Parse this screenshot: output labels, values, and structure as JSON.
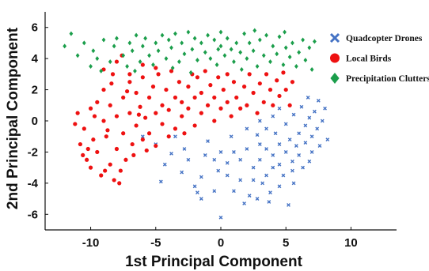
{
  "chart_data": {
    "type": "scatter",
    "title": "",
    "xlabel": "1st Principal Component",
    "ylabel": "2nd Principal Component",
    "xlim": [
      -13.5,
      13.5
    ],
    "ylim": [
      -7,
      7
    ],
    "xticks": [
      -10,
      -5,
      0,
      5,
      10
    ],
    "xtick_labels": [
      "-10",
      "-5",
      "0",
      "5",
      "10"
    ],
    "yticks": [
      -6,
      -4,
      -2,
      0,
      2,
      4,
      6
    ],
    "ytick_labels": [
      "-6",
      "-4",
      "-2",
      "0",
      "2",
      "4",
      "6"
    ],
    "grid": false,
    "legend_position": "top-right",
    "series": [
      {
        "name": "Quadcopter Drones",
        "marker": "x",
        "color": "#4472c4",
        "points": [
          [
            -6.0,
            -1.0
          ],
          [
            -5.0,
            -1.5
          ],
          [
            -4.3,
            -2.8
          ],
          [
            -3.5,
            -1.0
          ],
          [
            -3.0,
            -3.3
          ],
          [
            -2.5,
            -2.5
          ],
          [
            -2.0,
            -4.2
          ],
          [
            -1.5,
            -3.6
          ],
          [
            -1.0,
            -1.3
          ],
          [
            -1.8,
            -4.6
          ],
          [
            -1.5,
            -5.0
          ],
          [
            -0.5,
            -2.5
          ],
          [
            -0.5,
            -4.5
          ],
          [
            0.0,
            -2.0
          ],
          [
            0.0,
            -6.2
          ],
          [
            0.5,
            -3.5
          ],
          [
            0.8,
            -1.0
          ],
          [
            1.0,
            -4.5
          ],
          [
            1.5,
            -2.5
          ],
          [
            1.5,
            -3.8
          ],
          [
            2.0,
            -0.5
          ],
          [
            2.0,
            -1.8
          ],
          [
            2.2,
            -4.8
          ],
          [
            2.5,
            -3.0
          ],
          [
            2.8,
            -5.0
          ],
          [
            3.0,
            -1.5
          ],
          [
            3.0,
            -2.5
          ],
          [
            3.2,
            -4.0
          ],
          [
            3.5,
            -0.5
          ],
          [
            3.5,
            -1.8
          ],
          [
            3.5,
            -3.5
          ],
          [
            3.8,
            -4.6
          ],
          [
            4.0,
            -2.2
          ],
          [
            4.0,
            -3.0
          ],
          [
            4.2,
            -0.8
          ],
          [
            4.5,
            -1.5
          ],
          [
            4.5,
            -2.8
          ],
          [
            4.5,
            -4.2
          ],
          [
            4.8,
            -3.5
          ],
          [
            5.0,
            -0.2
          ],
          [
            5.0,
            -2.0
          ],
          [
            5.2,
            -5.4
          ],
          [
            5.3,
            -1.2
          ],
          [
            5.5,
            -2.6
          ],
          [
            5.5,
            -3.2
          ],
          [
            5.6,
            0.4
          ],
          [
            5.8,
            -1.6
          ],
          [
            6.0,
            -0.8
          ],
          [
            6.0,
            -2.2
          ],
          [
            6.2,
            0.9
          ],
          [
            6.3,
            -3.0
          ],
          [
            6.5,
            -0.3
          ],
          [
            6.5,
            -1.4
          ],
          [
            6.7,
            1.5
          ],
          [
            6.8,
            0.2
          ],
          [
            7.0,
            -1.0
          ],
          [
            7.0,
            -2.0
          ],
          [
            7.2,
            0.6
          ],
          [
            7.4,
            -0.5
          ],
          [
            7.5,
            1.3
          ],
          [
            7.6,
            -1.6
          ],
          [
            7.8,
            0.0
          ],
          [
            8.0,
            0.8
          ],
          [
            8.2,
            -1.2
          ],
          [
            4.0,
            0.3
          ],
          [
            4.5,
            0.8
          ],
          [
            3.0,
            0.0
          ],
          [
            2.5,
            -3.8
          ],
          [
            1.0,
            -2.0
          ],
          [
            0.5,
            -2.7
          ],
          [
            -0.2,
            -3.2
          ],
          [
            -1.2,
            -2.2
          ],
          [
            -2.8,
            -1.8
          ],
          [
            -3.8,
            -2.1
          ],
          [
            -4.6,
            -3.9
          ],
          [
            1.8,
            -5.3
          ],
          [
            3.7,
            -5.2
          ],
          [
            2.8,
            -0.9
          ],
          [
            5.6,
            -4.0
          ],
          [
            6.8,
            -2.6
          ]
        ]
      },
      {
        "name": "Local Birds",
        "marker": "o",
        "color": "#ee1111",
        "points": [
          [
            -11.0,
            0.5
          ],
          [
            -10.8,
            -1.5
          ],
          [
            -10.5,
            -0.5
          ],
          [
            -10.3,
            -2.5
          ],
          [
            -10.0,
            0.8
          ],
          [
            -10.0,
            -3.0
          ],
          [
            -9.8,
            -1.2
          ],
          [
            -9.5,
            1.2
          ],
          [
            -9.5,
            -2.0
          ],
          [
            -9.2,
            -3.5
          ],
          [
            -9.0,
            0.0
          ],
          [
            -9.0,
            2.0
          ],
          [
            -8.8,
            -1.0
          ],
          [
            -8.5,
            1.0
          ],
          [
            -8.5,
            -2.8
          ],
          [
            -8.3,
            3.0
          ],
          [
            -8.2,
            -3.8
          ],
          [
            -8.0,
            0.3
          ],
          [
            -8.0,
            -1.8
          ],
          [
            -7.8,
            -4.0
          ],
          [
            -7.5,
            1.5
          ],
          [
            -7.5,
            -0.8
          ],
          [
            -7.3,
            -2.5
          ],
          [
            -7.0,
            0.5
          ],
          [
            -7.0,
            2.5
          ],
          [
            -6.8,
            -1.5
          ],
          [
            -6.5,
            1.8
          ],
          [
            -6.5,
            -0.3
          ],
          [
            -6.2,
            0.9
          ],
          [
            -6.0,
            -1.2
          ],
          [
            -6.0,
            2.8
          ],
          [
            -5.8,
            0.2
          ],
          [
            -5.5,
            1.5
          ],
          [
            -5.5,
            -0.8
          ],
          [
            -5.2,
            2.2
          ],
          [
            -5.0,
            0.5
          ],
          [
            -5.0,
            -1.6
          ],
          [
            -4.8,
            3.0
          ],
          [
            -4.5,
            1.0
          ],
          [
            -4.5,
            -0.2
          ],
          [
            -4.2,
            2.0
          ],
          [
            -4.0,
            -1.0
          ],
          [
            -4.0,
            0.7
          ],
          [
            -3.8,
            3.2
          ],
          [
            -3.5,
            1.5
          ],
          [
            -3.5,
            -0.5
          ],
          [
            -3.2,
            2.5
          ],
          [
            -3.0,
            0.3
          ],
          [
            -3.0,
            1.2
          ],
          [
            -2.8,
            -0.8
          ],
          [
            -2.5,
            2.2
          ],
          [
            -2.5,
            0.8
          ],
          [
            -2.2,
            3.0
          ],
          [
            -2.0,
            1.5
          ],
          [
            -2.0,
            -0.3
          ],
          [
            -1.8,
            2.8
          ],
          [
            -1.5,
            0.5
          ],
          [
            -1.5,
            1.8
          ],
          [
            -1.2,
            3.2
          ],
          [
            -1.0,
            1.0
          ],
          [
            -0.8,
            2.3
          ],
          [
            -0.5,
            0.0
          ],
          [
            -0.5,
            1.5
          ],
          [
            -0.2,
            2.8
          ],
          [
            0.0,
            0.8
          ],
          [
            0.2,
            2.0
          ],
          [
            0.5,
            1.2
          ],
          [
            0.5,
            3.0
          ],
          [
            0.8,
            0.3
          ],
          [
            1.0,
            2.5
          ],
          [
            1.2,
            1.5
          ],
          [
            1.5,
            0.8
          ],
          [
            1.8,
            2.2
          ],
          [
            2.0,
            1.0
          ],
          [
            2.2,
            3.0
          ],
          [
            2.5,
            1.8
          ],
          [
            2.8,
            0.5
          ],
          [
            3.0,
            2.4
          ],
          [
            3.3,
            1.2
          ],
          [
            3.5,
            3.0
          ],
          [
            3.8,
            2.0
          ],
          [
            4.0,
            1.0
          ],
          [
            4.3,
            2.6
          ],
          [
            4.5,
            1.6
          ],
          [
            4.8,
            3.1
          ],
          [
            5.0,
            2.0
          ],
          [
            5.3,
            1.0
          ],
          [
            5.5,
            2.5
          ],
          [
            -11.2,
            -0.2
          ],
          [
            -10.2,
            -1.8
          ],
          [
            -9.7,
            0.3
          ],
          [
            -8.7,
            -0.6
          ],
          [
            -8.4,
            2.4
          ],
          [
            -7.7,
            -3.2
          ],
          [
            -7.2,
            1.9
          ],
          [
            -6.7,
            -2.2
          ],
          [
            -6.3,
            0.4
          ],
          [
            -5.7,
            -1.9
          ],
          [
            -9.0,
            3.3
          ],
          [
            -8.0,
            3.8
          ],
          [
            -7.0,
            3.0
          ],
          [
            -6.0,
            3.6
          ],
          [
            -5.0,
            3.4
          ],
          [
            -7.6,
            4.2
          ],
          [
            -8.9,
            -3.2
          ],
          [
            -10.6,
            -2.2
          ]
        ]
      },
      {
        "name": "Precipitation Clutters",
        "marker": "D",
        "color": "#1b9e4b",
        "points": [
          [
            -12.0,
            4.8
          ],
          [
            -11.0,
            4.2
          ],
          [
            -10.5,
            5.0
          ],
          [
            -10.0,
            3.5
          ],
          [
            -9.8,
            4.5
          ],
          [
            -9.5,
            4.0
          ],
          [
            -9.0,
            5.2
          ],
          [
            -8.5,
            3.8
          ],
          [
            -8.2,
            4.8
          ],
          [
            -8.0,
            5.3
          ],
          [
            -7.5,
            4.2
          ],
          [
            -7.2,
            3.5
          ],
          [
            -7.0,
            5.0
          ],
          [
            -6.8,
            4.5
          ],
          [
            -6.5,
            5.5
          ],
          [
            -6.2,
            3.8
          ],
          [
            -6.0,
            4.8
          ],
          [
            -5.8,
            5.3
          ],
          [
            -5.5,
            4.2
          ],
          [
            -5.2,
            3.6
          ],
          [
            -5.0,
            5.0
          ],
          [
            -4.8,
            4.5
          ],
          [
            -4.5,
            5.5
          ],
          [
            -4.2,
            4.0
          ],
          [
            -4.0,
            5.2
          ],
          [
            -3.8,
            4.7
          ],
          [
            -3.5,
            5.6
          ],
          [
            -3.2,
            3.8
          ],
          [
            -3.0,
            5.0
          ],
          [
            -2.8,
            4.3
          ],
          [
            -2.5,
            5.7
          ],
          [
            -2.2,
            4.6
          ],
          [
            -2.0,
            5.3
          ],
          [
            -1.8,
            3.9
          ],
          [
            -1.5,
            5.0
          ],
          [
            -1.2,
            4.4
          ],
          [
            -1.0,
            5.5
          ],
          [
            -0.8,
            4.0
          ],
          [
            -0.5,
            5.2
          ],
          [
            -0.2,
            4.6
          ],
          [
            0.0,
            5.7
          ],
          [
            0.0,
            4.8
          ],
          [
            0.3,
            4.2
          ],
          [
            0.5,
            5.3
          ],
          [
            0.8,
            4.6
          ],
          [
            1.0,
            3.8
          ],
          [
            1.2,
            5.0
          ],
          [
            1.5,
            4.4
          ],
          [
            1.8,
            5.6
          ],
          [
            2.0,
            4.0
          ],
          [
            2.2,
            5.0
          ],
          [
            2.5,
            4.5
          ],
          [
            2.8,
            3.5
          ],
          [
            3.0,
            5.2
          ],
          [
            3.3,
            4.2
          ],
          [
            3.5,
            5.5
          ],
          [
            3.8,
            3.8
          ],
          [
            4.0,
            4.8
          ],
          [
            4.3,
            4.3
          ],
          [
            4.5,
            5.4
          ],
          [
            4.8,
            3.6
          ],
          [
            5.0,
            4.7
          ],
          [
            5.3,
            4.1
          ],
          [
            5.5,
            5.0
          ],
          [
            5.8,
            3.5
          ],
          [
            6.0,
            4.4
          ],
          [
            6.3,
            5.2
          ],
          [
            6.5,
            3.9
          ],
          [
            6.8,
            4.7
          ],
          [
            7.0,
            3.3
          ],
          [
            -11.5,
            5.6
          ],
          [
            -9.2,
            3.2
          ],
          [
            -3.7,
            3.4
          ],
          [
            -0.3,
            3.6
          ],
          [
            1.6,
            3.3
          ],
          [
            4.9,
            5.7
          ],
          [
            7.2,
            5.1
          ],
          [
            -6.6,
            3.2
          ],
          [
            -2.3,
            3.1
          ],
          [
            2.6,
            5.8
          ]
        ]
      }
    ]
  }
}
